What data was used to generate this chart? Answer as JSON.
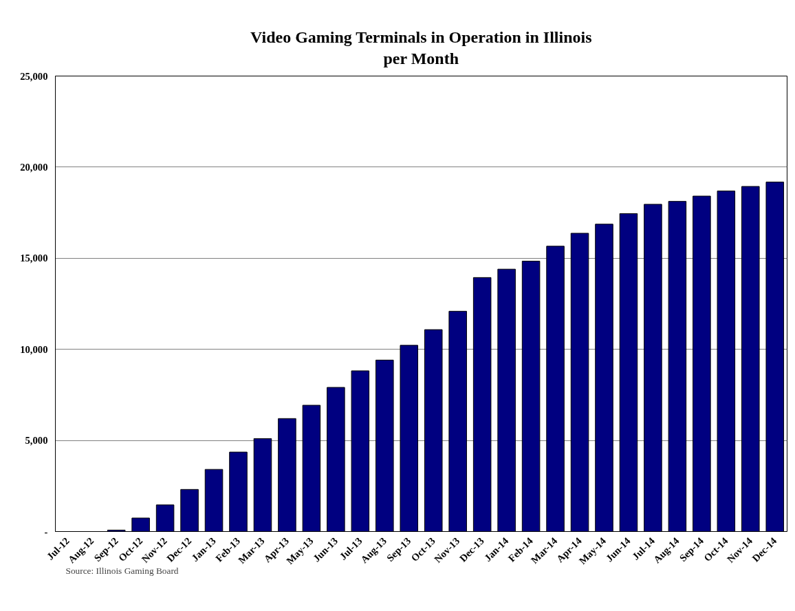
{
  "chart_data": {
    "type": "bar",
    "title": "Video Gaming Terminals in Operation in Illinois\nper Month",
    "categories": [
      "Jul-12",
      "Aug-12",
      "Sep-12",
      "Oct-12",
      "Nov-12",
      "Dec-12",
      "Jan-13",
      "Feb-13",
      "Mar-13",
      "Apr-13",
      "May-13",
      "Jun-13",
      "Jul-13",
      "Aug-13",
      "Sep-13",
      "Oct-13",
      "Nov-13",
      "Dec-13",
      "Jan-14",
      "Feb-14",
      "Mar-14",
      "Apr-14",
      "May-14",
      "Jun-14",
      "Jul-14",
      "Aug-14",
      "Sep-14",
      "Oct-14",
      "Nov-14",
      "Dec-14"
    ],
    "values": [
      0,
      0,
      80,
      740,
      1460,
      2310,
      3410,
      4360,
      5100,
      6200,
      6930,
      7910,
      8820,
      9410,
      10220,
      11080,
      12090,
      13940,
      14400,
      14840,
      15660,
      16370,
      16870,
      17450,
      17960,
      18120,
      18410,
      18690,
      18940,
      19180
    ],
    "color": "#000080",
    "ylim": [
      0,
      25000
    ],
    "yticks": [
      {
        "value": 0,
        "label": "-"
      },
      {
        "value": 5000,
        "label": "5,000"
      },
      {
        "value": 10000,
        "label": "10,000"
      },
      {
        "value": 15000,
        "label": "15,000"
      },
      {
        "value": 20000,
        "label": "20,000"
      },
      {
        "value": 25000,
        "label": "25,000"
      }
    ],
    "grid": "y",
    "annotations": [
      "Source:  Illinois Gaming Board"
    ]
  }
}
